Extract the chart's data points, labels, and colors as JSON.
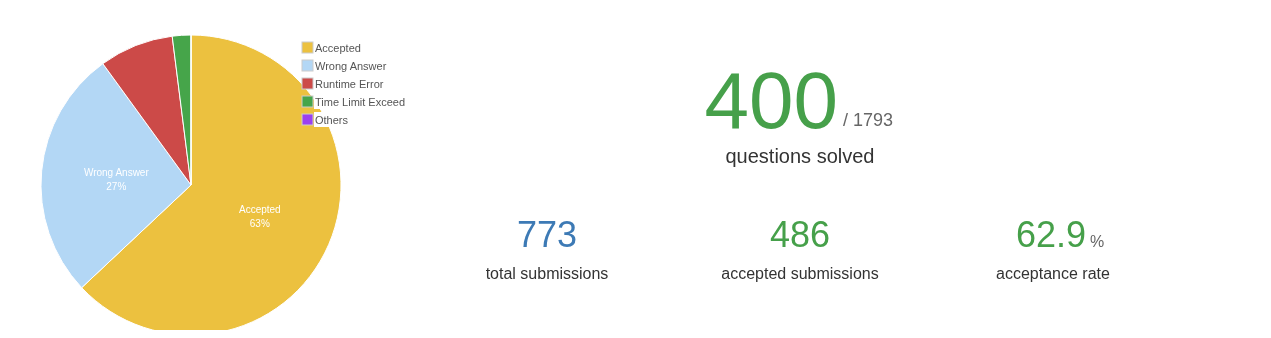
{
  "chart_data": [
    {
      "type": "pie",
      "categories": [
        "Accepted",
        "Wrong Answer",
        "Runtime Error",
        "Time Limit Exceed",
        "Others"
      ],
      "values": [
        63,
        27,
        8,
        2,
        0
      ],
      "colors": [
        "#ecc13f",
        "#b3d7f5",
        "#cc4a48",
        "#46a54a",
        "#9b3ff0"
      ],
      "value_labels": [
        "63%",
        "27%",
        null,
        null,
        null
      ],
      "legend": "top right"
    },
    {
      "type": "other",
      "annotations": [
        "400",
        "/ 1793",
        "questions solved",
        "773",
        "total submissions",
        "486",
        "accepted submissions",
        "62.9",
        "%",
        "acceptance rate"
      ]
    }
  ]
}
